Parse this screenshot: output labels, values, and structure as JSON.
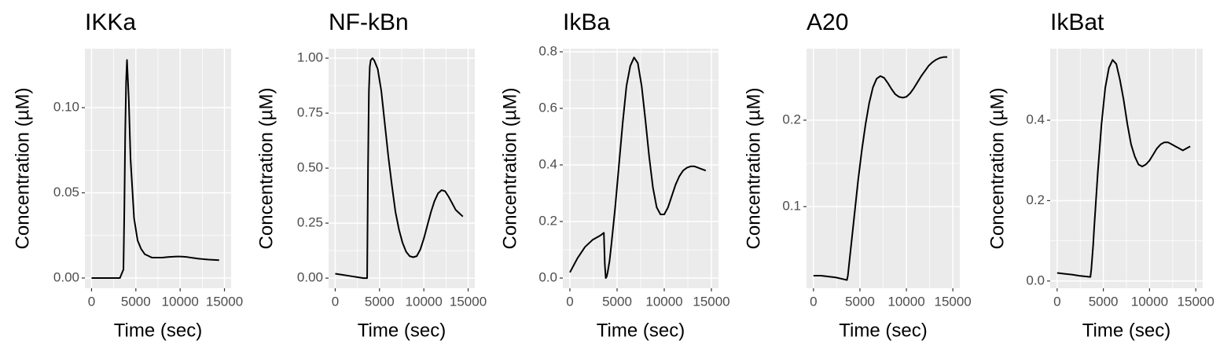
{
  "chart_data": [
    {
      "type": "line",
      "title": "IKKa",
      "x_label": "Time (sec)",
      "y_label": "Concentration (µM)",
      "color": "#000000",
      "grid": true,
      "x": [
        0,
        800,
        1600,
        2400,
        3200,
        3600,
        3700,
        3800,
        3900,
        4000,
        4200,
        4400,
        4800,
        5200,
        5600,
        6000,
        6400,
        6800,
        7200,
        7600,
        8000,
        8400,
        8800,
        9200,
        9600,
        10000,
        10400,
        10800,
        11200,
        11600,
        12000,
        12400,
        12800,
        13200,
        13600,
        14000,
        14400
      ],
      "values": [
        0,
        0,
        0,
        0,
        0,
        0.005,
        0.04,
        0.085,
        0.115,
        0.128,
        0.105,
        0.07,
        0.035,
        0.022,
        0.017,
        0.014,
        0.013,
        0.012,
        0.012,
        0.012,
        0.012,
        0.0122,
        0.0124,
        0.0125,
        0.0126,
        0.0126,
        0.0125,
        0.0123,
        0.012,
        0.0117,
        0.0114,
        0.0112,
        0.011,
        0.0108,
        0.0107,
        0.0106,
        0.0105
      ],
      "xlim": [
        -750,
        15750
      ],
      "xticks": [
        0,
        5000,
        10000,
        15000
      ],
      "ylim": [
        -0.006,
        0.1346
      ],
      "yticks": [
        {
          "value": 0,
          "label": "0.00"
        },
        0.05,
        {
          "value": 0.1,
          "label": "0.10"
        }
      ]
    },
    {
      "type": "line",
      "title": "NF-kBn",
      "x_label": "Time (sec)",
      "y_label": "Concentration (µM)",
      "color": "#000000",
      "grid": true,
      "x": [
        0,
        800,
        1600,
        2400,
        3200,
        3600,
        3700,
        3800,
        3900,
        4000,
        4200,
        4400,
        4800,
        5200,
        5600,
        6000,
        6400,
        6800,
        7200,
        7600,
        8000,
        8400,
        8800,
        9200,
        9600,
        10000,
        10400,
        10800,
        11200,
        11600,
        12000,
        12400,
        12800,
        13200,
        13600,
        14000,
        14400
      ],
      "values": [
        0.02,
        0.015,
        0.01,
        0.005,
        0.0,
        0.0,
        0.5,
        0.85,
        0.96,
        0.99,
        1.0,
        0.99,
        0.95,
        0.85,
        0.7,
        0.55,
        0.42,
        0.3,
        0.22,
        0.16,
        0.12,
        0.1,
        0.095,
        0.1,
        0.13,
        0.18,
        0.24,
        0.3,
        0.35,
        0.385,
        0.4,
        0.395,
        0.37,
        0.34,
        0.31,
        0.295,
        0.28
      ],
      "xlim": [
        -750,
        15750
      ],
      "xticks": [
        0,
        5000,
        10000,
        15000
      ],
      "ylim": [
        -0.046,
        1.043
      ],
      "yticks": [
        {
          "value": 0,
          "label": "0.00"
        },
        0.25,
        {
          "value": 0.5,
          "label": "0.50"
        },
        0.75,
        {
          "value": 1,
          "label": "1.00"
        }
      ]
    },
    {
      "type": "line",
      "title": "IkBa",
      "x_label": "Time (sec)",
      "y_label": "Concentration (µM)",
      "color": "#000000",
      "grid": true,
      "x": [
        0,
        800,
        1600,
        2400,
        3200,
        3600,
        3700,
        3800,
        3900,
        4000,
        4200,
        4400,
        4800,
        5200,
        5600,
        6000,
        6400,
        6800,
        7200,
        7600,
        8000,
        8400,
        8800,
        9200,
        9600,
        10000,
        10400,
        10800,
        11200,
        11600,
        12000,
        12400,
        12800,
        13200,
        13600,
        14000,
        14400
      ],
      "values": [
        0.02,
        0.07,
        0.11,
        0.135,
        0.15,
        0.16,
        0.05,
        0.0,
        0.005,
        0.02,
        0.06,
        0.12,
        0.25,
        0.4,
        0.55,
        0.68,
        0.75,
        0.78,
        0.76,
        0.68,
        0.56,
        0.43,
        0.32,
        0.25,
        0.225,
        0.225,
        0.25,
        0.29,
        0.33,
        0.36,
        0.38,
        0.39,
        0.395,
        0.395,
        0.39,
        0.385,
        0.38
      ],
      "xlim": [
        -750,
        15750
      ],
      "xticks": [
        0,
        5000,
        10000,
        15000
      ],
      "ylim": [
        -0.036,
        0.811
      ],
      "yticks": [
        {
          "value": 0,
          "label": "0.0"
        },
        0.2,
        0.4,
        0.6,
        0.8
      ]
    },
    {
      "type": "line",
      "title": "A20",
      "x_label": "Time (sec)",
      "y_label": "Concentration (µM)",
      "color": "#000000",
      "grid": true,
      "x": [
        0,
        800,
        1600,
        2400,
        3200,
        3600,
        3700,
        3800,
        3900,
        4000,
        4200,
        4400,
        4800,
        5200,
        5600,
        6000,
        6400,
        6800,
        7200,
        7600,
        8000,
        8400,
        8800,
        9200,
        9600,
        10000,
        10400,
        10800,
        11200,
        11600,
        12000,
        12400,
        12800,
        13200,
        13600,
        14000,
        14400
      ],
      "values": [
        0.02,
        0.02,
        0.019,
        0.018,
        0.016,
        0.015,
        0.02,
        0.03,
        0.04,
        0.05,
        0.07,
        0.09,
        0.13,
        0.165,
        0.195,
        0.22,
        0.238,
        0.248,
        0.251,
        0.249,
        0.243,
        0.236,
        0.23,
        0.227,
        0.226,
        0.227,
        0.231,
        0.237,
        0.244,
        0.251,
        0.257,
        0.263,
        0.267,
        0.27,
        0.272,
        0.273,
        0.273
      ],
      "xlim": [
        -750,
        15750
      ],
      "xticks": [
        0,
        5000,
        10000,
        15000
      ],
      "ylim": [
        0.0055,
        0.2827
      ],
      "yticks": [
        0.1,
        0.2
      ]
    },
    {
      "type": "line",
      "title": "IkBat",
      "x_label": "Time (sec)",
      "y_label": "Concentration (µM)",
      "color": "#000000",
      "grid": true,
      "x": [
        0,
        800,
        1600,
        2400,
        3200,
        3600,
        3700,
        3800,
        3900,
        4000,
        4200,
        4400,
        4800,
        5200,
        5600,
        6000,
        6400,
        6800,
        7200,
        7600,
        8000,
        8400,
        8800,
        9200,
        9600,
        10000,
        10400,
        10800,
        11200,
        11600,
        12000,
        12400,
        12800,
        13200,
        13600,
        14000,
        14400
      ],
      "values": [
        0.02,
        0.018,
        0.016,
        0.013,
        0.011,
        0.01,
        0.03,
        0.06,
        0.09,
        0.13,
        0.2,
        0.27,
        0.39,
        0.48,
        0.53,
        0.55,
        0.54,
        0.5,
        0.45,
        0.39,
        0.34,
        0.31,
        0.29,
        0.285,
        0.29,
        0.3,
        0.315,
        0.33,
        0.34,
        0.345,
        0.345,
        0.34,
        0.335,
        0.33,
        0.325,
        0.33,
        0.335
      ],
      "xlim": [
        -750,
        15750
      ],
      "xticks": [
        0,
        5000,
        10000,
        15000
      ],
      "ylim": [
        -0.018,
        0.578
      ],
      "yticks": [
        {
          "value": 0,
          "label": "0.0"
        },
        0.2,
        0.4
      ]
    }
  ]
}
